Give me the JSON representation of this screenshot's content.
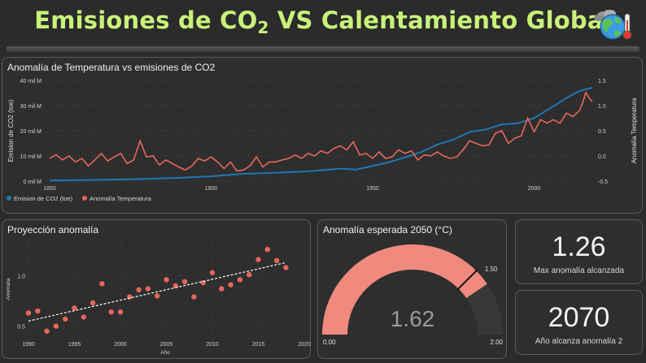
{
  "header": {
    "title_pre": "Emisiones de CO",
    "title_sub": "2",
    "title_post": " VS Calentamiento Global",
    "icon": "earth-thermometer-icon"
  },
  "colors": {
    "accent_title": "#c9f27a",
    "co2": "#1f77b4",
    "temp": "#e8675a",
    "gauge_fill": "#f08a7e",
    "gauge_bg": "#383838"
  },
  "chart_data": [
    {
      "type": "line",
      "title": "Anomalía de Temperatura vs emisiones de CO2",
      "ylabel": "Emision de CO2 (toe)",
      "y2label": "Anomalía Temperatura",
      "xlim": [
        1850,
        2018
      ],
      "ylim": [
        0,
        40
      ],
      "y2lim": [
        -0.5,
        1.5
      ],
      "x_ticks": [
        "1850",
        "1900",
        "1950",
        "2000"
      ],
      "y_ticks": [
        "0 mil M",
        "10 mil M",
        "20 mil M",
        "30 mil M",
        "40 mil M"
      ],
      "y2_ticks": [
        "-0.5",
        "0.0",
        "0.5",
        "1.0",
        "1.5"
      ],
      "legend": [
        "Emision de CO2 (toe)",
        "Anomalía Temperatura"
      ],
      "legend_position": "bottom-left",
      "series": [
        {
          "name": "Emision de CO2 (toe)",
          "axis": "left",
          "x": [
            1850,
            1860,
            1870,
            1880,
            1890,
            1900,
            1910,
            1920,
            1930,
            1940,
            1945,
            1950,
            1955,
            1960,
            1965,
            1970,
            1975,
            1980,
            1985,
            1990,
            1995,
            2000,
            2005,
            2010,
            2014,
            2018
          ],
          "values": [
            0.2,
            0.4,
            0.6,
            0.9,
            1.3,
            1.9,
            2.9,
            3.3,
            3.9,
            4.9,
            4.6,
            6.0,
            7.5,
            9.4,
            11.5,
            14.5,
            16.5,
            19.5,
            20.5,
            22.5,
            23.0,
            25.0,
            29.0,
            33.0,
            35.8,
            37.1
          ]
        },
        {
          "name": "Anomalía Temperatura",
          "axis": "right",
          "x": [
            1850,
            1852,
            1854,
            1856,
            1858,
            1860,
            1862,
            1864,
            1866,
            1868,
            1870,
            1872,
            1874,
            1876,
            1878,
            1880,
            1882,
            1884,
            1886,
            1888,
            1890,
            1892,
            1894,
            1896,
            1898,
            1900,
            1902,
            1904,
            1906,
            1908,
            1910,
            1912,
            1914,
            1916,
            1918,
            1920,
            1922,
            1924,
            1926,
            1928,
            1930,
            1932,
            1934,
            1936,
            1938,
            1940,
            1942,
            1944,
            1946,
            1948,
            1950,
            1952,
            1954,
            1956,
            1958,
            1960,
            1962,
            1964,
            1966,
            1968,
            1970,
            1972,
            1974,
            1976,
            1978,
            1980,
            1982,
            1984,
            1986,
            1988,
            1990,
            1992,
            1994,
            1996,
            1998,
            2000,
            2002,
            2004,
            2006,
            2008,
            2010,
            2012,
            2014,
            2015,
            2016,
            2017,
            2018
          ],
          "values": [
            -0.05,
            0.02,
            -0.08,
            0.0,
            -0.12,
            -0.05,
            -0.2,
            -0.08,
            0.05,
            -0.1,
            -0.02,
            0.05,
            -0.15,
            -0.08,
            0.3,
            -0.02,
            0.0,
            -0.18,
            -0.08,
            -0.15,
            -0.22,
            -0.28,
            -0.2,
            -0.05,
            -0.1,
            -0.02,
            -0.12,
            -0.25,
            -0.12,
            -0.3,
            -0.28,
            -0.2,
            -0.02,
            -0.22,
            -0.12,
            -0.12,
            -0.08,
            -0.05,
            0.02,
            -0.05,
            0.05,
            0.0,
            0.1,
            0.05,
            0.15,
            0.2,
            0.12,
            0.28,
            0.02,
            0.05,
            -0.05,
            0.08,
            -0.05,
            -0.02,
            0.12,
            0.05,
            0.1,
            -0.08,
            0.02,
            0.0,
            0.08,
            0.0,
            -0.05,
            -0.02,
            0.12,
            0.3,
            0.25,
            0.2,
            0.22,
            0.45,
            0.5,
            0.25,
            0.35,
            0.4,
            0.75,
            0.48,
            0.72,
            0.65,
            0.72,
            0.65,
            0.85,
            0.78,
            0.9,
            1.05,
            1.26,
            1.15,
            1.08
          ]
        }
      ]
    },
    {
      "type": "scatter",
      "title": "Proyección anomalía",
      "xlabel": "Año",
      "ylabel": "Anomalia",
      "xlim": [
        1990,
        2020
      ],
      "ylim": [
        0.4,
        1.35
      ],
      "x_ticks": [
        "1990",
        "1995",
        "2000",
        "2005",
        "2010",
        "2015",
        "2020"
      ],
      "y_ticks": [
        "0.5",
        "1.0"
      ],
      "trendline": {
        "x": [
          1990,
          2018
        ],
        "y": [
          0.55,
          1.13
        ],
        "style": "dashed"
      },
      "series": [
        {
          "x": [
            1990,
            1991,
            1992,
            1993,
            1994,
            1995,
            1996,
            1997,
            1998,
            1999,
            2000,
            2001,
            2002,
            2003,
            2004,
            2005,
            2006,
            2007,
            2008,
            2009,
            2010,
            2011,
            2012,
            2013,
            2014,
            2015,
            2016,
            2017,
            2018
          ],
          "values": [
            0.63,
            0.65,
            0.45,
            0.5,
            0.57,
            0.68,
            0.59,
            0.73,
            0.92,
            0.64,
            0.64,
            0.79,
            0.86,
            0.87,
            0.8,
            0.96,
            0.9,
            0.94,
            0.79,
            0.93,
            1.03,
            0.87,
            0.91,
            0.96,
            1.01,
            1.16,
            1.26,
            1.15,
            1.08
          ]
        }
      ]
    }
  ],
  "gauge": {
    "title": "Anomalía esperada 2050 (°C)",
    "value": 1.62,
    "value_label": "1.62",
    "min": 0,
    "max": 2,
    "min_label": "0.00",
    "max_label": "2.00",
    "target": 1.5,
    "target_label": "1.50"
  },
  "kpis": [
    {
      "value": "1.26",
      "label": "Max anomalía alcanzada"
    },
    {
      "value": "2070",
      "label": "Año alcanza anomalía 2"
    }
  ]
}
